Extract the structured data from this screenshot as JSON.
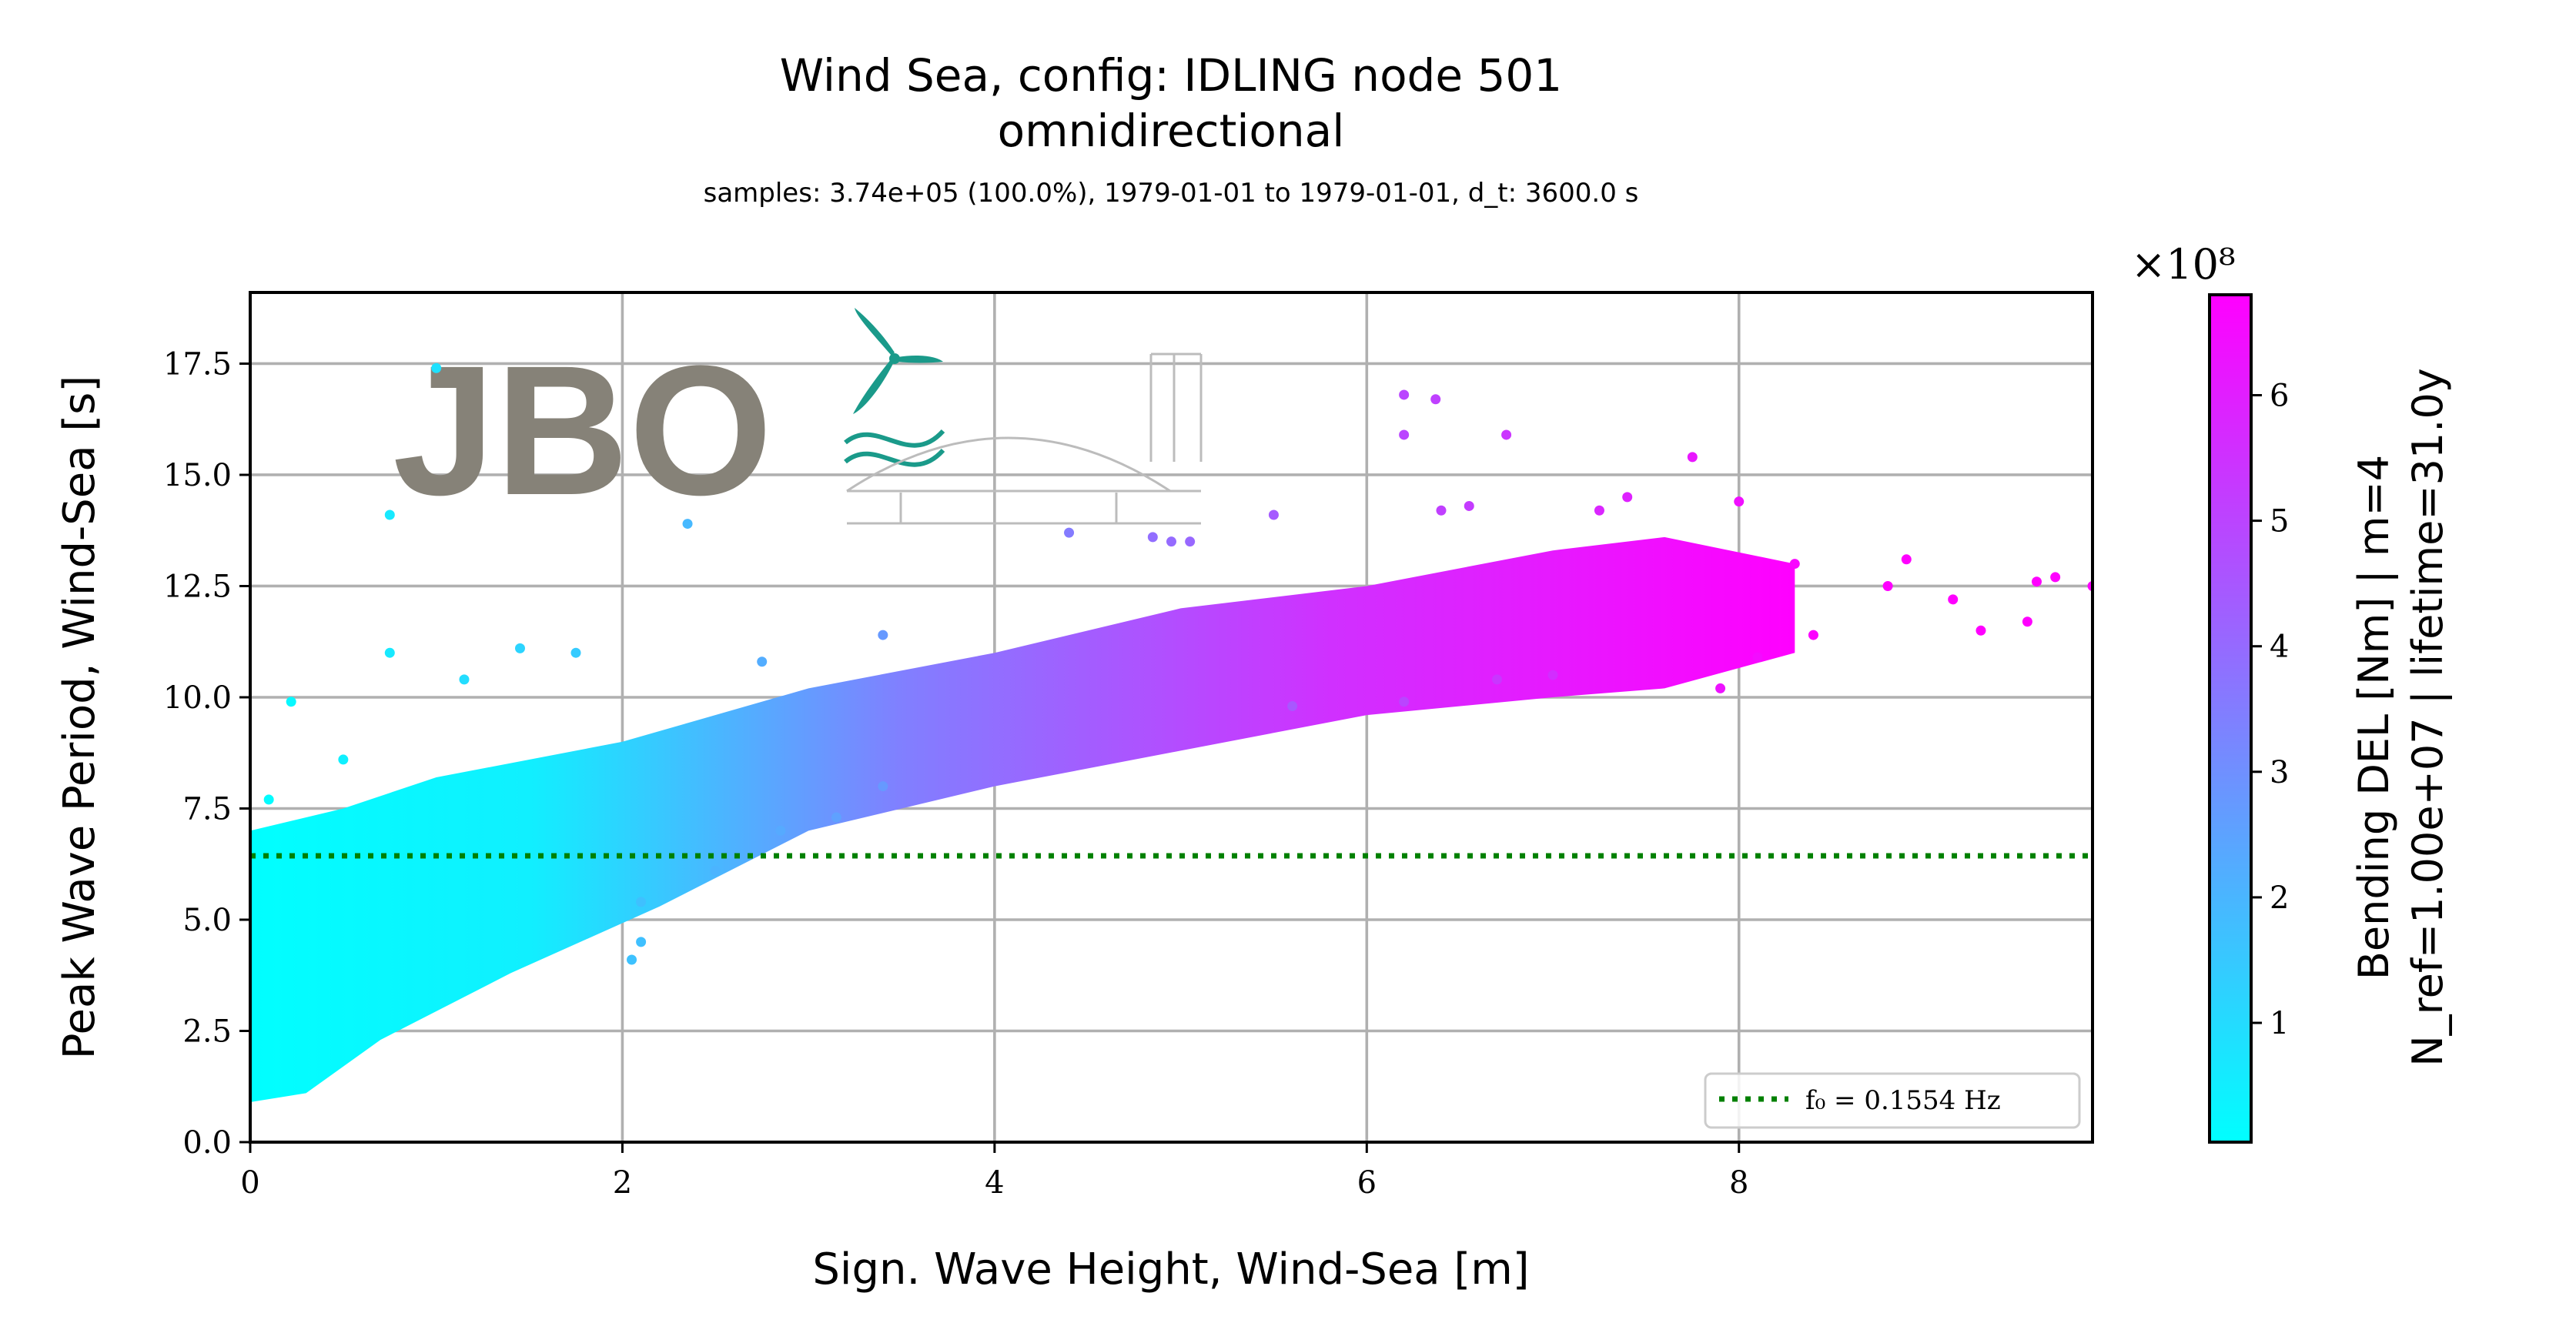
{
  "chart_data": {
    "type": "scatter",
    "title": "Wind Sea, config: IDLING node 501",
    "subtitle": "omnidirectional",
    "info": "samples: 3.74e+05 (100.0%), 1979-01-01 to 1979-01-01, d_t: 3600.0 s",
    "xlabel": "Sign. Wave Height, Wind-Sea [m]",
    "ylabel": "Peak Wave Period, Wind-Sea [s]",
    "xlim": [
      0,
      9.9
    ],
    "ylim": [
      0,
      19.1
    ],
    "x_ticks": [
      0,
      2,
      4,
      6,
      8
    ],
    "x_tick_labels": [
      "0",
      "2",
      "4",
      "6",
      "8"
    ],
    "y_ticks": [
      0,
      2.5,
      5,
      7.5,
      10,
      12.5,
      15,
      17.5
    ],
    "y_tick_labels": [
      "0.0",
      "2.5",
      "5.0",
      "7.5",
      "10.0",
      "12.5",
      "15.0",
      "17.5"
    ],
    "grid": true,
    "legend_position": "lower-right",
    "reference_line": {
      "label": "f₀ = 0.1554 Hz",
      "y": 6.435,
      "color": "#008000",
      "style": "dotted"
    },
    "colorbar": {
      "label_line1": "Bending DEL [Nm] | m=4",
      "label_line2": "N_ref=1.00e+07 | lifetime=31.0y",
      "multiplier": "×10⁸",
      "range": [
        0.05,
        6.8
      ],
      "ticks": [
        1,
        2,
        3,
        4,
        5,
        6
      ],
      "tick_labels": [
        "1",
        "2",
        "3",
        "4",
        "5",
        "6"
      ],
      "color_low": "#00ffff",
      "color_high": "#ff00ff"
    },
    "series": [
      {
        "points": [
          [
            0.1,
            7.7
          ],
          [
            0.22,
            9.9
          ],
          [
            0.5,
            8.6
          ],
          [
            0.75,
            11.0
          ],
          [
            0.75,
            14.1
          ],
          [
            1.0,
            17.4
          ],
          [
            1.15,
            10.4
          ],
          [
            1.45,
            11.1
          ],
          [
            1.75,
            11.0
          ],
          [
            2.35,
            13.9
          ],
          [
            2.75,
            10.8
          ],
          [
            2.1,
            4.5
          ],
          [
            2.05,
            4.1
          ],
          [
            2.1,
            5.4
          ],
          [
            2.5,
            6.1
          ],
          [
            3.4,
            11.4
          ],
          [
            4.4,
            13.7
          ],
          [
            4.85,
            13.6
          ],
          [
            4.95,
            13.5
          ],
          [
            5.05,
            13.5
          ],
          [
            6.2,
            16.8
          ],
          [
            6.37,
            16.7
          ],
          [
            6.2,
            15.9
          ],
          [
            6.75,
            15.9
          ],
          [
            7.75,
            15.4
          ],
          [
            8.0,
            14.4
          ],
          [
            8.3,
            13.0
          ],
          [
            8.8,
            12.5
          ],
          [
            8.9,
            13.1
          ],
          [
            9.15,
            12.2
          ],
          [
            9.3,
            11.5
          ],
          [
            9.6,
            12.6
          ],
          [
            9.7,
            12.7
          ],
          [
            9.55,
            11.7
          ],
          [
            9.9,
            12.5
          ],
          [
            5.5,
            14.1
          ],
          [
            6.4,
            14.2
          ],
          [
            6.55,
            14.3
          ],
          [
            7.25,
            14.2
          ],
          [
            7.4,
            14.5
          ],
          [
            7.9,
            10.2
          ],
          [
            8.1,
            10.9
          ],
          [
            8.4,
            11.4
          ],
          [
            7.0,
            10.5
          ],
          [
            5.6,
            9.8
          ],
          [
            6.2,
            9.9
          ],
          [
            6.7,
            10.4
          ],
          [
            3.15,
            7.3
          ],
          [
            2.85,
            7.0
          ],
          [
            3.4,
            8.0
          ]
        ]
      }
    ]
  }
}
